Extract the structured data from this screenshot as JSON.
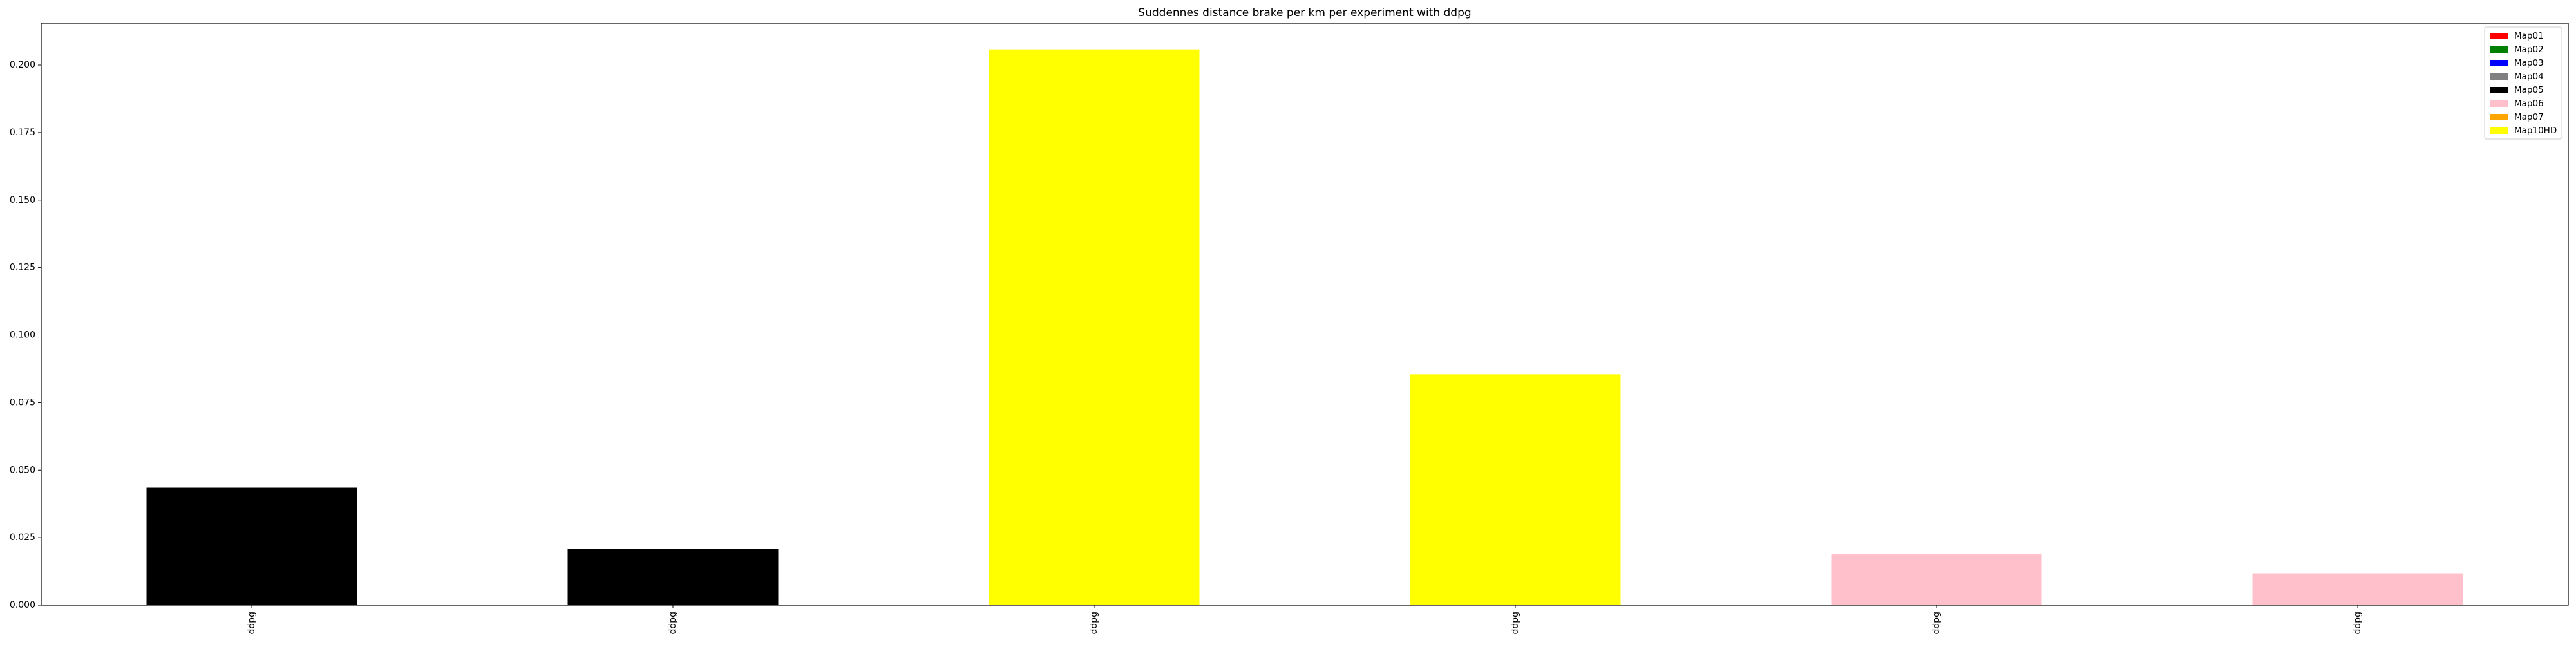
{
  "chart_data": {
    "type": "bar",
    "title": "Suddennes distance brake per km per experiment with ddpg",
    "xlabel": "",
    "ylabel": "",
    "categories": [
      "ddpg",
      "ddpg",
      "ddpg",
      "ddpg",
      "ddpg",
      "ddpg"
    ],
    "values": [
      0.0435,
      0.0208,
      0.2058,
      0.0855,
      0.019,
      0.0118
    ],
    "bar_colors": [
      "#000000",
      "#000000",
      "#ffff00",
      "#ffff00",
      "#ffc0cb",
      "#ffc0cb"
    ],
    "ylim": [
      0,
      0.2155
    ],
    "yticks": [
      0.0,
      0.025,
      0.05,
      0.075,
      0.1,
      0.125,
      0.15,
      0.175,
      0.2
    ],
    "ytick_labels": [
      "0.000",
      "0.025",
      "0.050",
      "0.075",
      "0.100",
      "0.125",
      "0.150",
      "0.175",
      "0.200"
    ],
    "grid": false,
    "legend_position": "upper right",
    "legend": [
      {
        "label": "Map01",
        "color": "#ff0000"
      },
      {
        "label": "Map02",
        "color": "#008000"
      },
      {
        "label": "Map03",
        "color": "#0000ff"
      },
      {
        "label": "Map04",
        "color": "#808080"
      },
      {
        "label": "Map05",
        "color": "#000000"
      },
      {
        "label": "Map06",
        "color": "#ffc0cb"
      },
      {
        "label": "Map07",
        "color": "#ffa500"
      },
      {
        "label": "Map10HD",
        "color": "#ffff00"
      }
    ]
  }
}
